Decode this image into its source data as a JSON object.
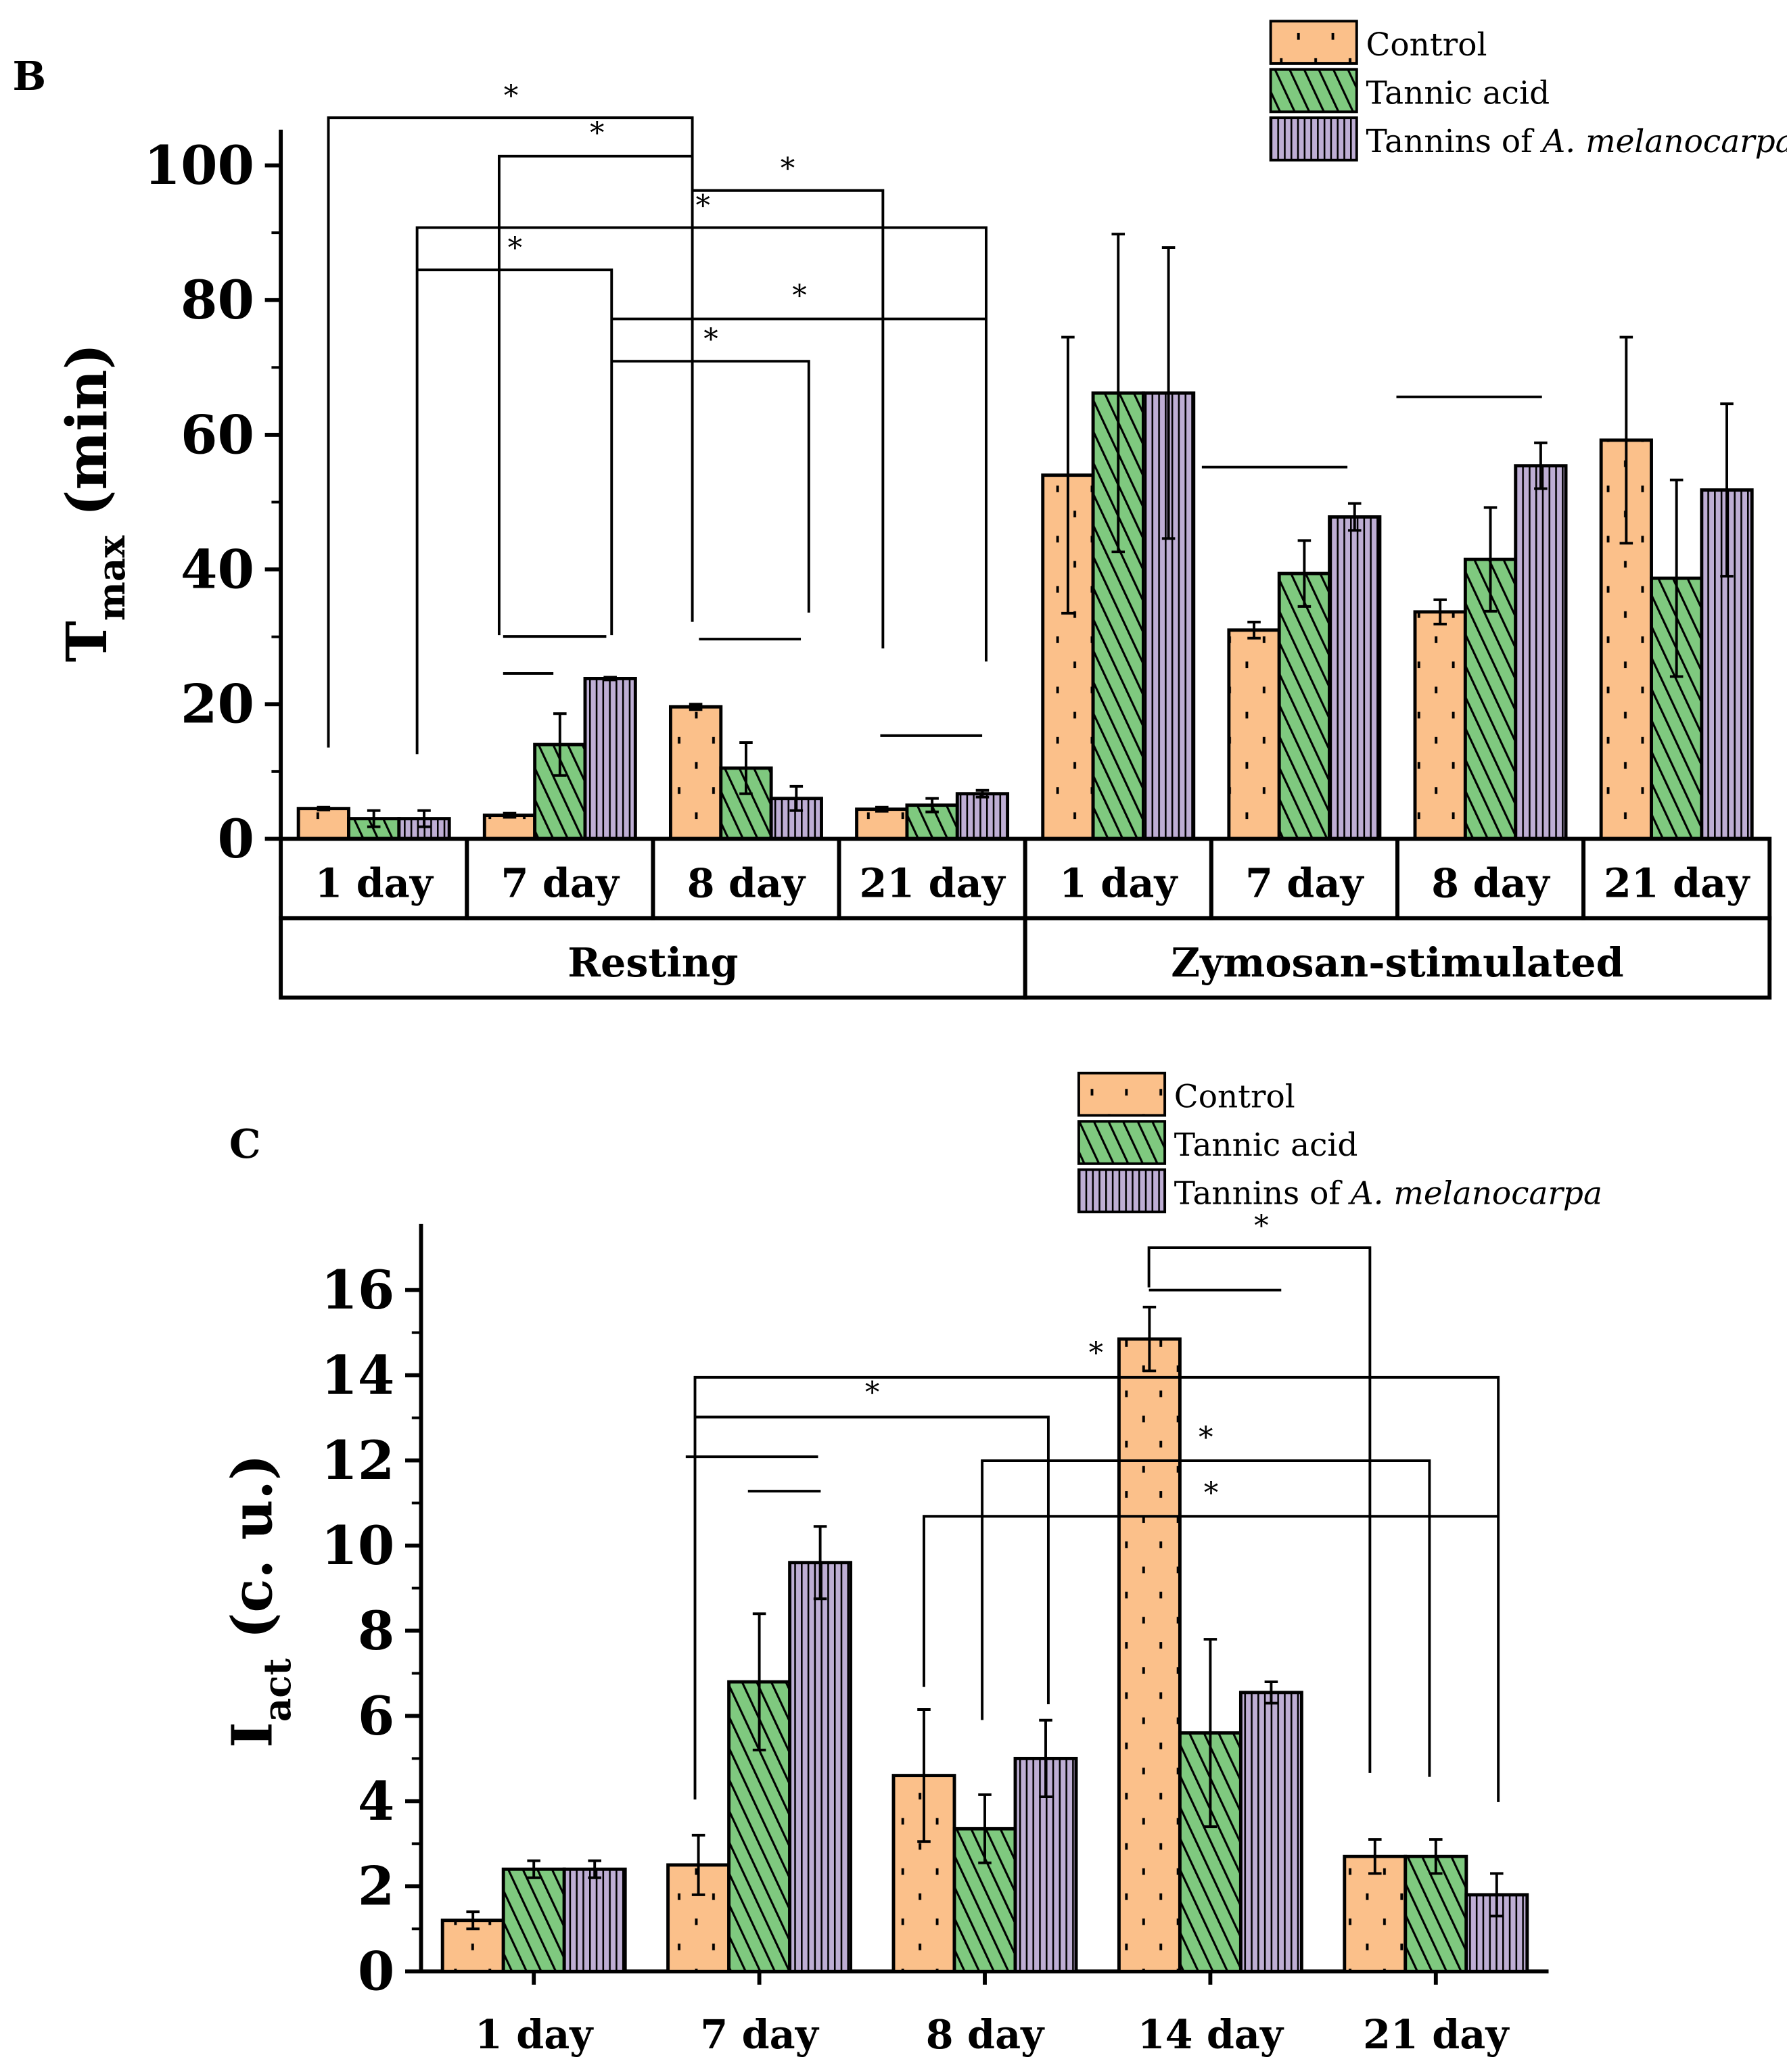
{
  "colors": {
    "control": "#FBC08A",
    "tannic": "#7FC97F",
    "tannins": "#BEAED4",
    "axis": "#000000"
  },
  "chart_data": [
    {
      "type": "bar",
      "panel_label": "B",
      "ylabel_main": "T",
      "ylabel_sub": "max",
      "ylabel_unit": " (min)",
      "ylim": [
        0,
        100
      ],
      "yticks": [
        "0",
        "20",
        "40",
        "60",
        "80",
        "100"
      ],
      "categories": [
        "1 day",
        "7 day",
        "8 day",
        "21 day",
        "1 day",
        "7 day",
        "8 day",
        "21 day"
      ],
      "groups": [
        "Resting",
        "Zymosan-stimulated"
      ],
      "legend": {
        "placement": "top-right",
        "entries": [
          "Control",
          "Tannic acid",
          "Tannins of ",
          "A. melanocarpa"
        ]
      },
      "series": [
        {
          "name": "Control",
          "values": [
            4.5,
            3.5,
            19.6,
            4.4,
            54,
            31,
            33.7,
            59.2
          ],
          "errors": [
            0.2,
            0.3,
            0.4,
            0.3,
            20.5,
            1.2,
            1.8,
            15.3
          ]
        },
        {
          "name": "Tannic acid",
          "values": [
            3,
            14,
            10.5,
            5,
            66.2,
            39.4,
            41.5,
            38.7
          ],
          "errors": [
            1.2,
            4.6,
            3.8,
            1,
            23.6,
            4.9,
            7.7,
            14.6
          ]
        },
        {
          "name": "Tannins of A. melanocarpa",
          "values": [
            3,
            23.8,
            6,
            6.7,
            66.2,
            47.8,
            55.4,
            51.8
          ],
          "errors": [
            1.2,
            0.2,
            1.8,
            0.5,
            21.6,
            2,
            3.4,
            12.8
          ]
        }
      ],
      "significance_marker": "*"
    },
    {
      "type": "bar",
      "panel_label": "C",
      "ylabel_main": "I",
      "ylabel_sub": "act",
      "ylabel_unit": " (c. u.)",
      "ylim": [
        0,
        17
      ],
      "yticks": [
        "0",
        "2",
        "4",
        "6",
        "8",
        "10",
        "12",
        "14",
        "16"
      ],
      "categories": [
        "1 day",
        "7 day",
        "8 day",
        "14 day",
        "21 day"
      ],
      "legend": {
        "placement": "top-center",
        "entries": [
          "Control",
          "Tannic acid",
          "Tannins of ",
          "A. melanocarpa"
        ]
      },
      "series": [
        {
          "name": "Control",
          "values": [
            1.2,
            2.5,
            4.6,
            14.85,
            2.7
          ],
          "errors": [
            0.2,
            0.7,
            1.55,
            0.75,
            0.4
          ]
        },
        {
          "name": "Tannic acid",
          "values": [
            2.4,
            6.8,
            3.35,
            5.6,
            2.7
          ],
          "errors": [
            0.2,
            1.6,
            0.8,
            2.2,
            0.4
          ]
        },
        {
          "name": "Tannins of A. melanocarpa",
          "values": [
            2.4,
            9.6,
            5,
            6.55,
            1.8
          ],
          "errors": [
            0.2,
            0.85,
            0.9,
            0.25,
            0.5
          ]
        }
      ],
      "significance_marker": "*"
    }
  ]
}
